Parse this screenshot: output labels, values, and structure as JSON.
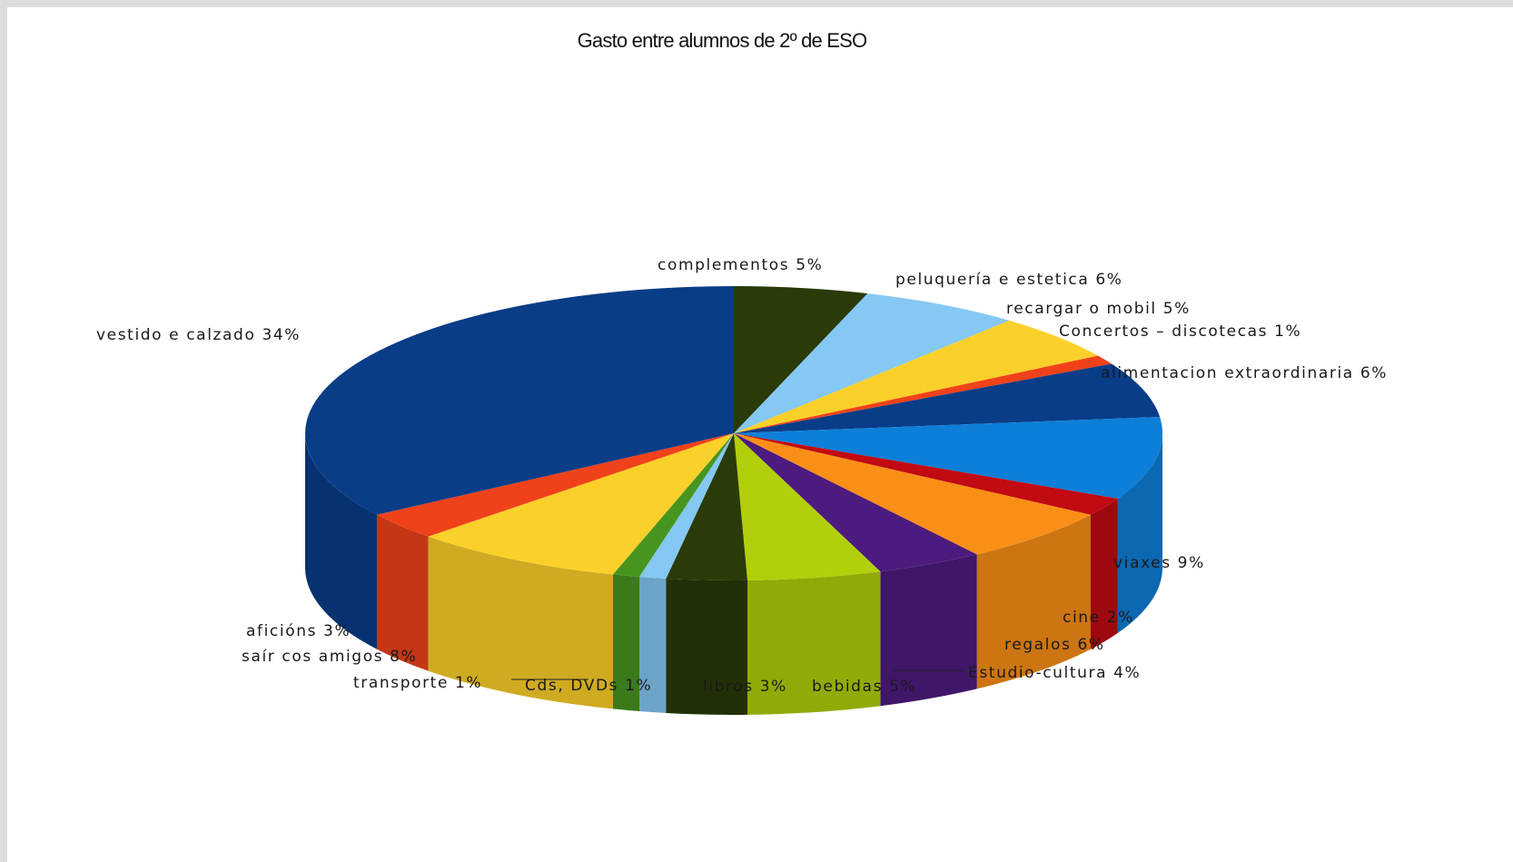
{
  "chart_data": {
    "type": "pie",
    "title": "Gasto entre alumnos de 2º de ESO",
    "slices": [
      {
        "label": "complementos 5%",
        "value": 5,
        "color": "#2a3a08"
      },
      {
        "label": "peluquería e estetica 6%",
        "value": 6,
        "color": "#84c8f3"
      },
      {
        "label": "recargar o mobil 5%",
        "value": 5,
        "color": "#fcd02a"
      },
      {
        "label": "Concertos – discotecas 1%",
        "value": 1,
        "color": "#f0421a"
      },
      {
        "label": "alimentacion extraordinaria 6%",
        "value": 6,
        "color": "#0a3d87"
      },
      {
        "label": "viaxes 9%",
        "value": 9,
        "color": "#0d7fd8"
      },
      {
        "label": "cine 2%",
        "value": 2,
        "color": "#c10a12"
      },
      {
        "label": "regalos 6%",
        "value": 6,
        "color": "#f98f16"
      },
      {
        "label": "Estudio-cultura 4%",
        "value": 4,
        "color": "#4d1b7f"
      },
      {
        "label": "bebidas 5%",
        "value": 5,
        "color": "#b2cf0a"
      },
      {
        "label": "libros 3%",
        "value": 3,
        "color": "#2a3a08"
      },
      {
        "label": "Cds, DVDs 1%",
        "value": 1,
        "color": "#84c8f3"
      },
      {
        "label": "transporte 1%",
        "value": 1,
        "color": "#47951e"
      },
      {
        "label": "saír cos amigos  8%",
        "value": 8,
        "color": "#fcd02a"
      },
      {
        "label": "aficións 3%",
        "value": 3,
        "color": "#f0421a"
      },
      {
        "label": "vestido e calzado 34%",
        "value": 34,
        "color": "#0a3d87"
      }
    ]
  }
}
